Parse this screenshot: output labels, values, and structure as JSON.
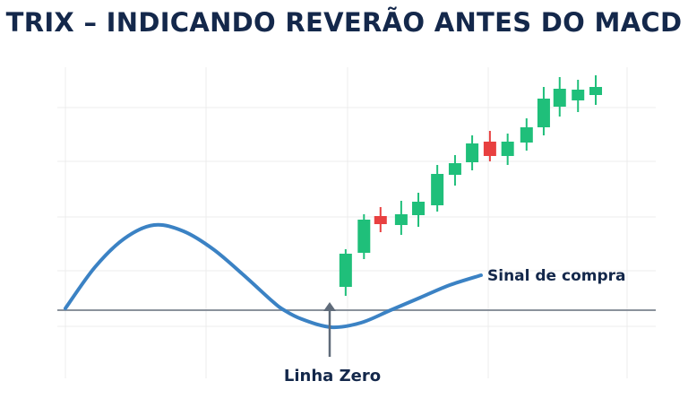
{
  "chart_data": {
    "type": "candlestick+line",
    "title": "TRIX – INDICANDO REVERÃO ANTES DO MACD",
    "xlabel": "",
    "ylabel": "",
    "grid": true,
    "zero_line": 0,
    "colors": {
      "up": "#1fbf7a",
      "down": "#e84040",
      "trix": "#3b82c4",
      "zero": "#8a929c",
      "title": "#14284b",
      "grid": "#ececec"
    },
    "trix": {
      "x": [
        0,
        5,
        10,
        15,
        20,
        25,
        30,
        35,
        37,
        40,
        45,
        50,
        55,
        60,
        65,
        70.3
      ],
      "y": [
        1,
        24,
        40,
        47.5,
        44,
        34,
        20,
        5,
        0,
        -5,
        -9.5,
        -7,
        0,
        7,
        14,
        19.5
      ]
    },
    "candles": [
      {
        "t": 47.4,
        "o": 13,
        "h": 34,
        "l": 8,
        "c": 31.5
      },
      {
        "t": 50.5,
        "o": 32,
        "h": 53.5,
        "l": 28.5,
        "c": 50.5
      },
      {
        "t": 53.3,
        "o": 52.5,
        "h": 57.5,
        "l": 43.5,
        "c": 48
      },
      {
        "t": 56.8,
        "o": 47.5,
        "h": 61,
        "l": 42,
        "c": 53.5
      },
      {
        "t": 59.7,
        "o": 53,
        "h": 65.5,
        "l": 46.5,
        "c": 60.5
      },
      {
        "t": 62.9,
        "o": 58.5,
        "h": 81,
        "l": 55,
        "c": 76
      },
      {
        "t": 65.9,
        "o": 75.5,
        "h": 86.5,
        "l": 69.5,
        "c": 82
      },
      {
        "t": 68.8,
        "o": 82.5,
        "h": 97.5,
        "l": 78,
        "c": 93
      },
      {
        "t": 71.8,
        "o": 94,
        "h": 100,
        "l": 83,
        "c": 86
      },
      {
        "t": 74.8,
        "o": 86,
        "h": 98.5,
        "l": 81,
        "c": 94
      },
      {
        "t": 78,
        "o": 93.5,
        "h": 107,
        "l": 89,
        "c": 102
      },
      {
        "t": 80.9,
        "o": 102,
        "h": 124.5,
        "l": 97.5,
        "c": 118
      },
      {
        "t": 83.6,
        "o": 113.5,
        "h": 130,
        "l": 108,
        "c": 123.5
      },
      {
        "t": 86.7,
        "o": 117,
        "h": 128.5,
        "l": 110.5,
        "c": 123
      },
      {
        "t": 89.7,
        "o": 120,
        "h": 131,
        "l": 114.5,
        "c": 124.5
      }
    ],
    "annotations": {
      "buy_signal": "Sinal de compra",
      "zero_line": "Linha Zero"
    }
  }
}
